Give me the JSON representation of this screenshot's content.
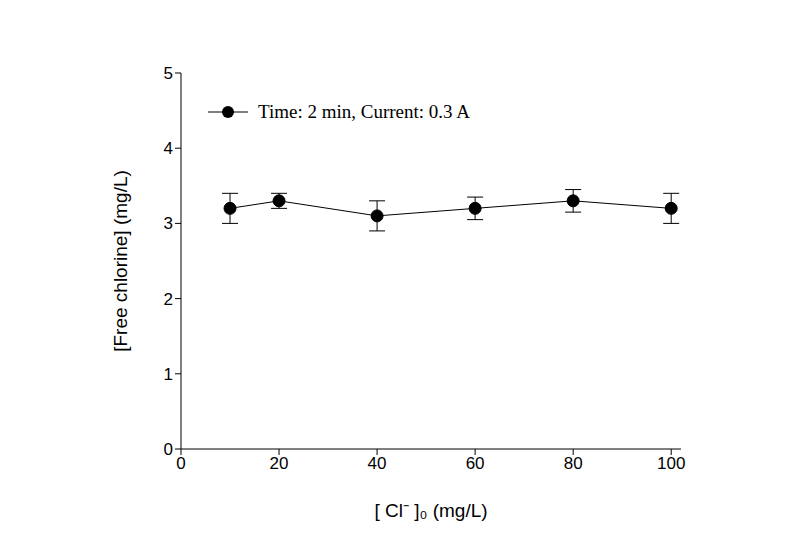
{
  "chart_data": {
    "type": "line",
    "x_label": "[ Cl⁻ ]₀ (mg/L)",
    "y_label": "[Free chlorine] (mg/L)",
    "x": [
      10,
      20,
      40,
      60,
      80,
      100
    ],
    "series": [
      {
        "name": "Time: 2 min, Current: 0.3 A",
        "color": "#000000",
        "marker": "circle",
        "line_style": "solid",
        "values": [
          3.2,
          3.3,
          3.1,
          3.2,
          3.3,
          3.2
        ],
        "error": [
          0.2,
          0.1,
          0.2,
          0.15,
          0.15,
          0.2
        ]
      }
    ],
    "xlim": [
      0,
      102
    ],
    "xticks": [
      0,
      20,
      40,
      60,
      80,
      100
    ],
    "ylim": [
      0,
      5
    ],
    "yticks": [
      0,
      1,
      2,
      3,
      4,
      5
    ],
    "grid": false,
    "legend": "upper left"
  }
}
